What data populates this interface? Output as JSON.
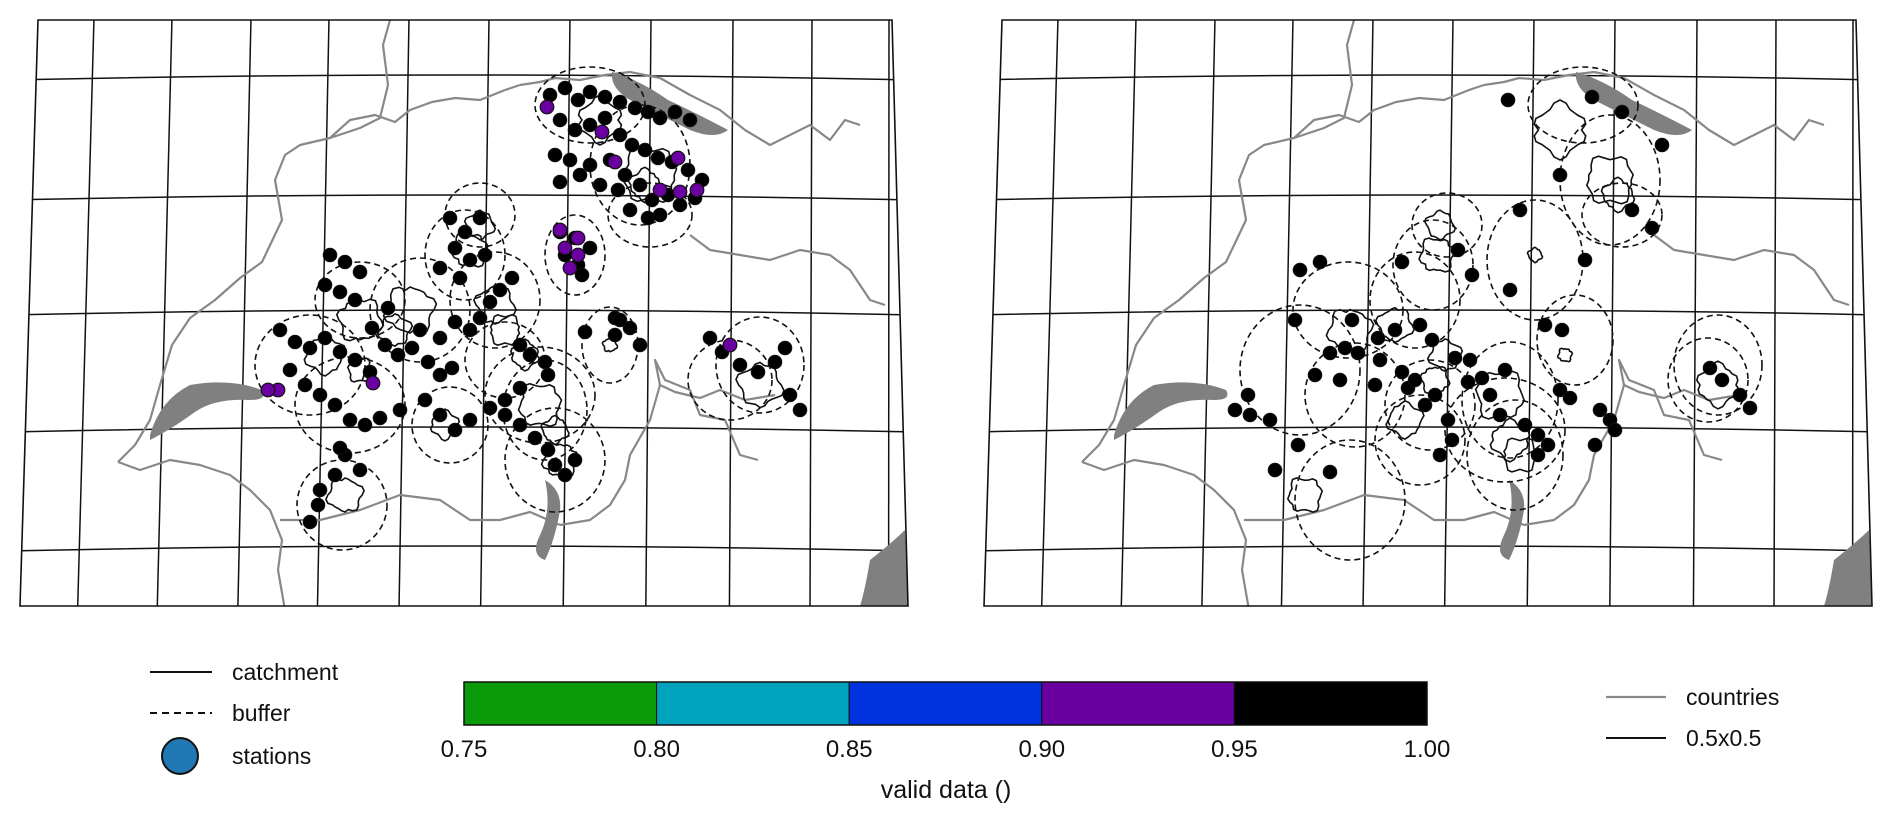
{
  "legend_left": {
    "catchment": "catchment",
    "buffer": "buffer",
    "stations": "stations",
    "station_color": "#1f77b4"
  },
  "legend_right": {
    "countries": "countries",
    "grid": "0.5x0.5",
    "countries_color": "#888888"
  },
  "colorbar": {
    "label": "valid data ()",
    "ticks": [
      "0.75",
      "0.80",
      "0.85",
      "0.90",
      "0.95",
      "1.00"
    ],
    "bins": [
      {
        "from": 0.75,
        "to": 0.8,
        "color": "#0a9a0a"
      },
      {
        "from": 0.8,
        "to": 0.85,
        "color": "#00a3bd"
      },
      {
        "from": 0.85,
        "to": 0.9,
        "color": "#0033dd"
      },
      {
        "from": 0.9,
        "to": 0.95,
        "color": "#6a00a0"
      },
      {
        "from": 0.95,
        "to": 1.0,
        "color": "#000000"
      }
    ]
  },
  "lake_color": "#808080"
}
